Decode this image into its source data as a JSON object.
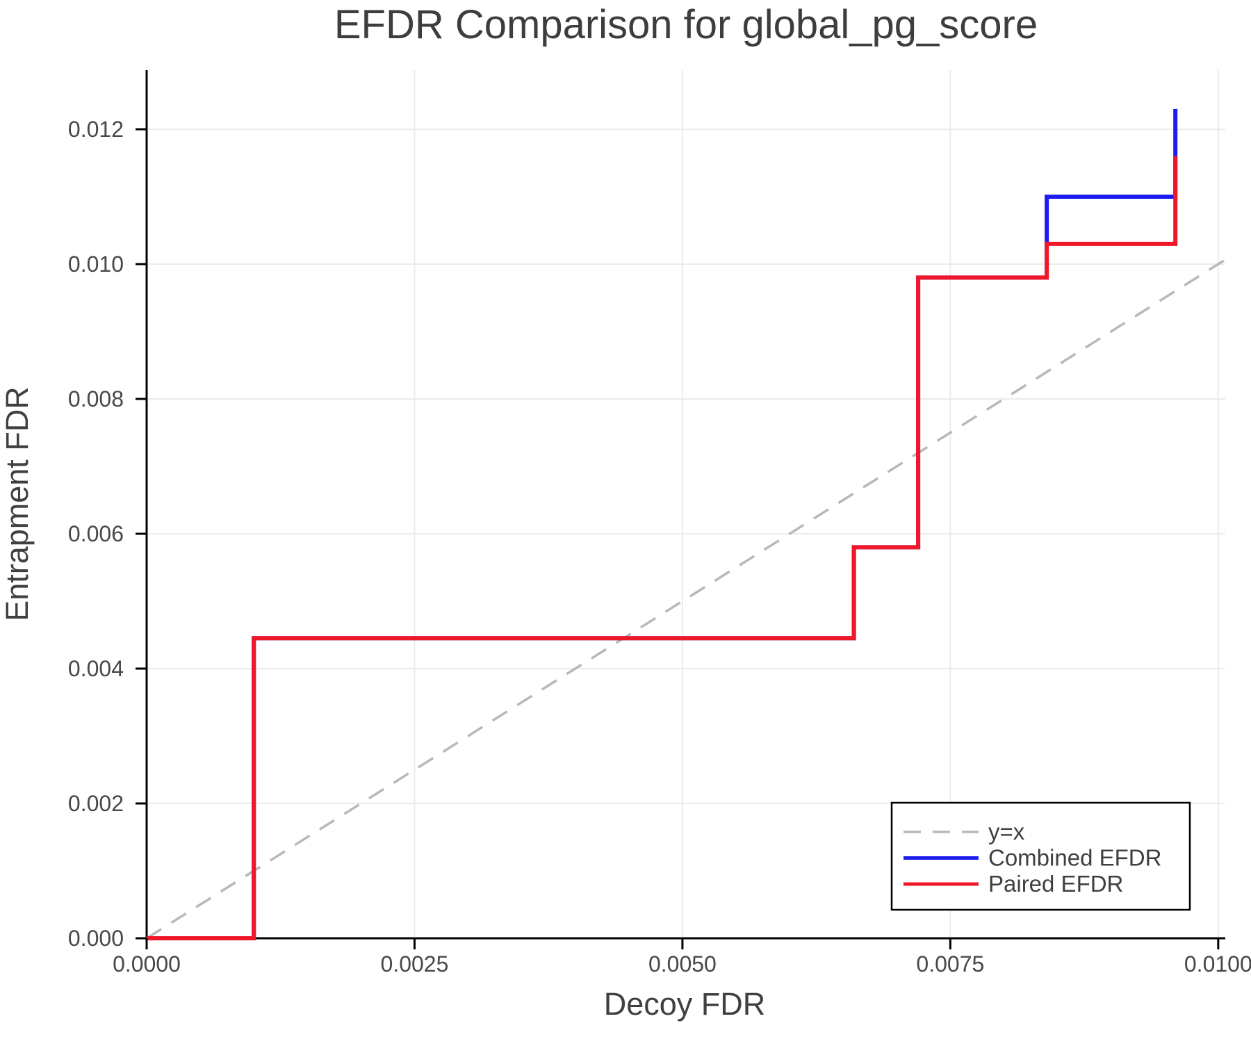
{
  "figure": {
    "background": "#ffffff"
  },
  "chart_data": {
    "type": "line",
    "subtype": "step-efdr-comparison",
    "title": "EFDR Comparison for global_pg_score",
    "xlabel": "Decoy FDR",
    "ylabel": "Entrapment FDR",
    "xlim": [
      0,
      0.010066
    ],
    "ylim": [
      0,
      0.012876
    ],
    "grid": true,
    "legend_position": "lower right",
    "xticks": [
      {
        "value": 0.0,
        "label": "0.0000"
      },
      {
        "value": 0.0025,
        "label": "0.0025"
      },
      {
        "value": 0.005,
        "label": "0.0050"
      },
      {
        "value": 0.0075,
        "label": "0.0075"
      },
      {
        "value": 0.01,
        "label": "0.0100"
      }
    ],
    "yticks": [
      {
        "value": 0.0,
        "label": "0.000"
      },
      {
        "value": 0.002,
        "label": "0.002"
      },
      {
        "value": 0.004,
        "label": "0.004"
      },
      {
        "value": 0.006,
        "label": "0.006"
      },
      {
        "value": 0.008,
        "label": "0.008"
      },
      {
        "value": 0.01,
        "label": "0.010"
      },
      {
        "value": 0.012,
        "label": "0.012"
      }
    ],
    "series": [
      {
        "name": "y=x",
        "kind": "reference",
        "color": "#b8b8b8",
        "width": 3.5,
        "dash": [
          25,
          17
        ],
        "points": [
          [
            0,
            0
          ],
          [
            0.010066,
            0.010066
          ]
        ]
      },
      {
        "name": "Combined EFDR",
        "kind": "step",
        "color": "#1c1cf0",
        "width": 6,
        "dash": null,
        "points": [
          [
            0.0,
            0.0
          ],
          [
            0.001,
            0.0
          ],
          [
            0.001,
            0.00445
          ],
          [
            0.0066,
            0.00445
          ],
          [
            0.0066,
            0.0058
          ],
          [
            0.0072,
            0.0058
          ],
          [
            0.0072,
            0.0098
          ],
          [
            0.0084,
            0.0098
          ],
          [
            0.0084,
            0.011
          ],
          [
            0.0096,
            0.011
          ],
          [
            0.0096,
            0.0123
          ]
        ]
      },
      {
        "name": "Paired EFDR",
        "kind": "step",
        "color": "#f01828",
        "width": 6,
        "dash": null,
        "points": [
          [
            0.0,
            0.0
          ],
          [
            0.001,
            0.0
          ],
          [
            0.001,
            0.00445
          ],
          [
            0.0066,
            0.00445
          ],
          [
            0.0066,
            0.0058
          ],
          [
            0.0072,
            0.0058
          ],
          [
            0.0072,
            0.0098
          ],
          [
            0.0084,
            0.0098
          ],
          [
            0.0084,
            0.0103
          ],
          [
            0.0096,
            0.0103
          ],
          [
            0.0096,
            0.0116
          ]
        ]
      }
    ],
    "legend": {
      "entries": [
        {
          "label": "y=x",
          "color": "#b8b8b8",
          "dashed": true
        },
        {
          "label": "Combined EFDR",
          "color": "#1c1cf0",
          "dashed": false
        },
        {
          "label": "Paired EFDR",
          "color": "#f01828",
          "dashed": false
        }
      ]
    },
    "colors": {
      "combined_efdr": "#1c1cf0",
      "paired_efdr": "#f01828",
      "reference_line": "#b8b8b8",
      "gridline": "#ebebeb",
      "axis_spine": "#000000",
      "title_text": "#3d3d3d",
      "tick_text": "#484848"
    }
  }
}
